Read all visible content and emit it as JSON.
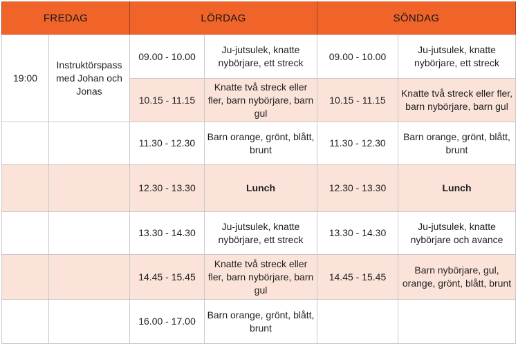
{
  "colors": {
    "header_bg": "#F0642A",
    "row_tint": "#FBE3DA",
    "cell_border": "#C9C9C9",
    "text": "#1E1E1E"
  },
  "table": {
    "headers": {
      "friday": "FREDAG",
      "saturday": "LÖRDAG",
      "sunday": "SÖNDAG"
    },
    "friday": {
      "time": "19:00",
      "activity": "Instruktörspass med Johan och Jonas"
    },
    "saturday": {
      "rows": [
        {
          "time": "09.00 - 10.00",
          "activity": "Ju-jutsulek, knatte nybörjare, ett streck"
        },
        {
          "time": "10.15 - 11.15",
          "activity": "Knatte två streck eller fler, barn nybörjare, barn gul"
        },
        {
          "time": "11.30 - 12.30",
          "activity": "Barn orange, grönt, blått, brunt"
        },
        {
          "time": "12.30 - 13.30",
          "activity": "Lunch"
        },
        {
          "time": "13.30 - 14.30",
          "activity": "Ju-jutsulek, knatte nybörjare, ett streck"
        },
        {
          "time": "14.45 - 15.45",
          "activity": "Knatte två streck eller fler, barn nybörjare, barn gul"
        },
        {
          "time": "16.00 - 17.00",
          "activity": "Barn orange, grönt, blått, brunt"
        }
      ]
    },
    "sunday": {
      "rows": [
        {
          "time": "09.00 - 10.00",
          "activity": "Ju-jutsulek, knatte nybörjare, ett streck"
        },
        {
          "time": "10.15 - 11.15",
          "activity": "Knatte två streck eller fler, barn nybörjare, barn gul"
        },
        {
          "time": "11.30 - 12.30",
          "activity": "Barn orange, grönt, blått, brunt"
        },
        {
          "time": "12.30 - 13.30",
          "activity": "Lunch"
        },
        {
          "time": "13.30 - 14.30",
          "activity": "Ju-jutsulek, knatte nybörjare och avance"
        },
        {
          "time": "14.45 - 15.45",
          "activity": "Barn nybörjare, gul, orange, grönt, blått, brunt"
        },
        {
          "time": "",
          "activity": ""
        }
      ]
    }
  }
}
